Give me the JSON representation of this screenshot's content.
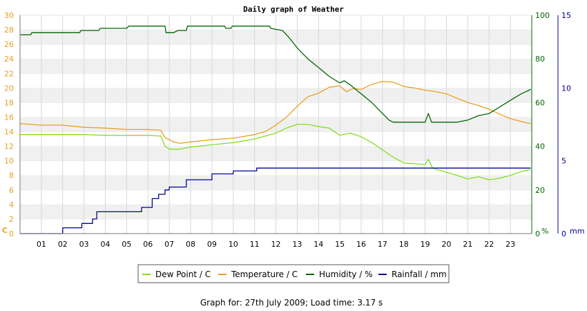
{
  "chart_data": {
    "type": "line",
    "title": "Daily graph of Weather",
    "footer": "Graph for: 27th July 2009; Load time: 3.17 s",
    "x_range": [
      0,
      24
    ],
    "x_ticks": [
      "01",
      "02",
      "03",
      "04",
      "05",
      "06",
      "07",
      "08",
      "09",
      "10",
      "11",
      "12",
      "13",
      "14",
      "15",
      "16",
      "17",
      "18",
      "19",
      "20",
      "21",
      "22",
      "23"
    ],
    "left_axis": {
      "unit_label": "C",
      "range": [
        0,
        30
      ],
      "ticks": [
        "0",
        "2",
        "4",
        "6",
        "8",
        "10",
        "12",
        "14",
        "16",
        "18",
        "20",
        "22",
        "24",
        "26",
        "28",
        "30"
      ],
      "color": "#e8a020"
    },
    "humidity_axis": {
      "unit_label": "%",
      "range": [
        0,
        100
      ],
      "ticks": [
        "0",
        "20",
        "40",
        "60",
        "80",
        "100"
      ],
      "color": "#006400"
    },
    "rain_axis": {
      "unit_label": "mm",
      "range": [
        0,
        15
      ],
      "ticks": [
        "0",
        "5",
        "10",
        "15"
      ],
      "color": "#000099"
    },
    "grid": true,
    "legend_position": "bottom",
    "series": [
      {
        "name": "Dew Point / C",
        "color": "#80e020",
        "axis": "left",
        "points": [
          [
            0,
            13.6
          ],
          [
            1,
            13.6
          ],
          [
            2,
            13.6
          ],
          [
            3,
            13.6
          ],
          [
            4,
            13.5
          ],
          [
            5,
            13.5
          ],
          [
            6,
            13.5
          ],
          [
            6.6,
            13.4
          ],
          [
            6.8,
            12.0
          ],
          [
            7.0,
            11.6
          ],
          [
            7.5,
            11.6
          ],
          [
            8,
            11.9
          ],
          [
            9,
            12.2
          ],
          [
            10,
            12.5
          ],
          [
            11,
            13.0
          ],
          [
            12,
            13.8
          ],
          [
            12.5,
            14.5
          ],
          [
            13,
            15.0
          ],
          [
            13.5,
            15.0
          ],
          [
            14,
            14.7
          ],
          [
            14.5,
            14.5
          ],
          [
            15,
            13.5
          ],
          [
            15.5,
            13.8
          ],
          [
            16,
            13.3
          ],
          [
            16.5,
            12.5
          ],
          [
            17,
            11.5
          ],
          [
            17.5,
            10.5
          ],
          [
            18,
            9.7
          ],
          [
            18.5,
            9.6
          ],
          [
            19,
            9.5
          ],
          [
            19.15,
            10.2
          ],
          [
            19.35,
            9.0
          ],
          [
            20,
            8.4
          ],
          [
            20.5,
            8.0
          ],
          [
            21,
            7.5
          ],
          [
            21.5,
            7.8
          ],
          [
            22,
            7.4
          ],
          [
            22.5,
            7.6
          ],
          [
            23,
            8.0
          ],
          [
            23.5,
            8.5
          ],
          [
            23.95,
            8.8
          ]
        ]
      },
      {
        "name": "Temperature / C",
        "color": "#e8a020",
        "axis": "left",
        "points": [
          [
            0,
            15.1
          ],
          [
            1,
            14.9
          ],
          [
            2,
            14.9
          ],
          [
            3,
            14.6
          ],
          [
            4,
            14.5
          ],
          [
            5,
            14.3
          ],
          [
            6,
            14.3
          ],
          [
            6.6,
            14.2
          ],
          [
            6.8,
            13.2
          ],
          [
            7.2,
            12.6
          ],
          [
            7.5,
            12.4
          ],
          [
            8,
            12.6
          ],
          [
            9,
            12.9
          ],
          [
            10,
            13.1
          ],
          [
            11,
            13.6
          ],
          [
            11.5,
            14.0
          ],
          [
            12,
            14.9
          ],
          [
            12.5,
            16.0
          ],
          [
            13,
            17.5
          ],
          [
            13.5,
            18.8
          ],
          [
            14,
            19.3
          ],
          [
            14.5,
            20.1
          ],
          [
            15,
            20.3
          ],
          [
            15.3,
            19.5
          ],
          [
            15.6,
            19.9
          ],
          [
            16,
            19.8
          ],
          [
            16.5,
            20.5
          ],
          [
            17,
            20.9
          ],
          [
            17.5,
            20.8
          ],
          [
            18,
            20.2
          ],
          [
            18.5,
            20.0
          ],
          [
            19,
            19.7
          ],
          [
            19.5,
            19.5
          ],
          [
            20,
            19.2
          ],
          [
            20.5,
            18.6
          ],
          [
            21,
            18.0
          ],
          [
            21.5,
            17.6
          ],
          [
            22,
            17.1
          ],
          [
            22.5,
            16.4
          ],
          [
            23,
            15.8
          ],
          [
            23.5,
            15.4
          ],
          [
            23.95,
            15.1
          ]
        ]
      },
      {
        "name": "Humidity / %",
        "color": "#006400",
        "axis": "humidity",
        "points": [
          [
            0,
            91
          ],
          [
            0.5,
            91
          ],
          [
            0.55,
            92
          ],
          [
            1,
            92
          ],
          [
            2,
            92
          ],
          [
            2.8,
            92
          ],
          [
            2.85,
            93
          ],
          [
            3.7,
            93
          ],
          [
            3.75,
            94
          ],
          [
            5,
            94
          ],
          [
            5.1,
            95
          ],
          [
            6.8,
            95
          ],
          [
            6.85,
            92
          ],
          [
            7.2,
            92
          ],
          [
            7.4,
            93
          ],
          [
            7.8,
            93
          ],
          [
            7.85,
            95
          ],
          [
            9.6,
            95
          ],
          [
            9.65,
            94
          ],
          [
            9.9,
            94
          ],
          [
            9.95,
            95
          ],
          [
            11.7,
            95
          ],
          [
            11.75,
            94
          ],
          [
            12.3,
            93
          ],
          [
            12.6,
            90
          ],
          [
            13,
            85
          ],
          [
            13.5,
            80
          ],
          [
            14,
            76
          ],
          [
            14.5,
            72
          ],
          [
            15,
            69
          ],
          [
            15.2,
            70
          ],
          [
            15.5,
            68
          ],
          [
            16,
            64
          ],
          [
            16.5,
            60
          ],
          [
            17,
            55
          ],
          [
            17.3,
            52
          ],
          [
            17.5,
            51
          ],
          [
            18,
            51
          ],
          [
            18.5,
            51
          ],
          [
            19,
            51
          ],
          [
            19.15,
            55
          ],
          [
            19.3,
            51
          ],
          [
            19.6,
            51
          ],
          [
            20,
            51
          ],
          [
            20.5,
            51
          ],
          [
            21,
            52
          ],
          [
            21.5,
            54
          ],
          [
            22,
            55
          ],
          [
            22.5,
            58
          ],
          [
            23,
            61
          ],
          [
            23.5,
            64
          ],
          [
            23.95,
            66
          ]
        ]
      },
      {
        "name": "Rainfall / mm",
        "color": "#000099",
        "axis": "rain",
        "step": true,
        "points": [
          [
            0,
            0
          ],
          [
            1.9,
            0
          ],
          [
            2,
            0.4
          ],
          [
            2.8,
            0.4
          ],
          [
            2.9,
            0.7
          ],
          [
            3.3,
            0.7
          ],
          [
            3.4,
            1.0
          ],
          [
            3.6,
            1.5
          ],
          [
            4,
            1.5
          ],
          [
            5,
            1.5
          ],
          [
            5.6,
            1.5
          ],
          [
            5.7,
            1.8
          ],
          [
            6.1,
            1.8
          ],
          [
            6.2,
            2.4
          ],
          [
            6.5,
            2.7
          ],
          [
            6.8,
            3.0
          ],
          [
            7.0,
            3.2
          ],
          [
            7.6,
            3.2
          ],
          [
            7.8,
            3.7
          ],
          [
            8.9,
            3.7
          ],
          [
            9.0,
            4.1
          ],
          [
            9.9,
            4.1
          ],
          [
            10.0,
            4.3
          ],
          [
            11.0,
            4.3
          ],
          [
            11.1,
            4.5
          ],
          [
            12,
            4.5
          ],
          [
            23.95,
            4.5
          ]
        ]
      }
    ]
  }
}
